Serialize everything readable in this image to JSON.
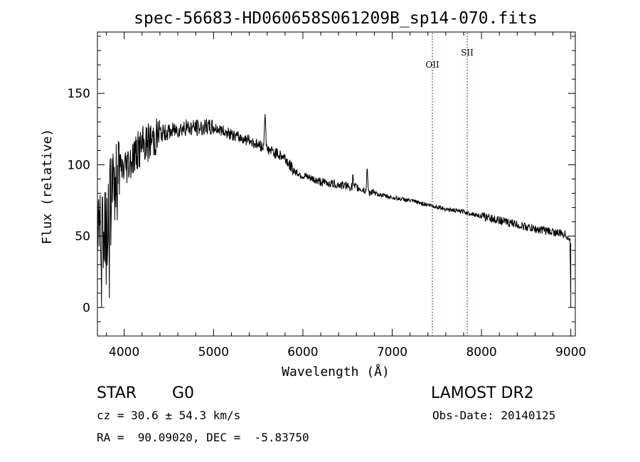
{
  "chart_data": {
    "type": "line",
    "title": "spec-56683-HD060658S061209B_sp14-070.fits",
    "xlabel": "Wavelength (Å)",
    "ylabel": "Flux (relative)",
    "xlim": [
      3700,
      9050
    ],
    "ylim": [
      -20,
      193
    ],
    "xticks": [
      4000,
      5000,
      6000,
      7000,
      8000,
      9000
    ],
    "yticks": [
      0,
      50,
      100,
      150
    ],
    "anchors": [
      [
        3700,
        60
      ],
      [
        3760,
        55
      ],
      [
        3800,
        62
      ],
      [
        3850,
        75
      ],
      [
        3900,
        85
      ],
      [
        3950,
        96
      ],
      [
        4000,
        98
      ],
      [
        4100,
        106
      ],
      [
        4200,
        113
      ],
      [
        4300,
        117
      ],
      [
        4350,
        119
      ],
      [
        4400,
        122
      ],
      [
        4500,
        123
      ],
      [
        4600,
        125
      ],
      [
        4700,
        126
      ],
      [
        4800,
        126
      ],
      [
        4900,
        126
      ],
      [
        5000,
        126
      ],
      [
        5100,
        124
      ],
      [
        5200,
        121
      ],
      [
        5300,
        119
      ],
      [
        5400,
        117
      ],
      [
        5500,
        114
      ],
      [
        5600,
        111
      ],
      [
        5700,
        108
      ],
      [
        5800,
        105
      ],
      [
        5850,
        100
      ],
      [
        5900,
        96
      ],
      [
        6000,
        92
      ],
      [
        6100,
        90
      ],
      [
        6200,
        88
      ],
      [
        6300,
        87
      ],
      [
        6400,
        86
      ],
      [
        6500,
        85
      ],
      [
        6600,
        84
      ],
      [
        6700,
        82
      ],
      [
        6800,
        80
      ],
      [
        7000,
        77
      ],
      [
        7200,
        75
      ],
      [
        7400,
        72
      ],
      [
        7600,
        69
      ],
      [
        7800,
        67
      ],
      [
        8000,
        64
      ],
      [
        8200,
        61
      ],
      [
        8400,
        58
      ],
      [
        8600,
        55
      ],
      [
        8800,
        53
      ],
      [
        8950,
        51
      ],
      [
        8990,
        47
      ],
      [
        9000,
        0
      ]
    ],
    "spikes": [
      {
        "x": 5577,
        "y": 137
      },
      {
        "x": 6560,
        "y": 96
      },
      {
        "x": 6720,
        "y": 100
      }
    ],
    "seed": 56683,
    "markers": [
      {
        "label": "OII",
        "x": 7450
      },
      {
        "label": "SII",
        "x": 7840
      }
    ],
    "marker_color": "#a0241e"
  },
  "info": {
    "object_type": "STAR",
    "subclass": "G0",
    "survey": "LAMOST DR2",
    "cz": "cz = 30.6 ± 54.3 km/s",
    "obs_date": "Obs-Date: 20140125",
    "coords": "RA =  90.09020, DEC =  -5.83750"
  }
}
